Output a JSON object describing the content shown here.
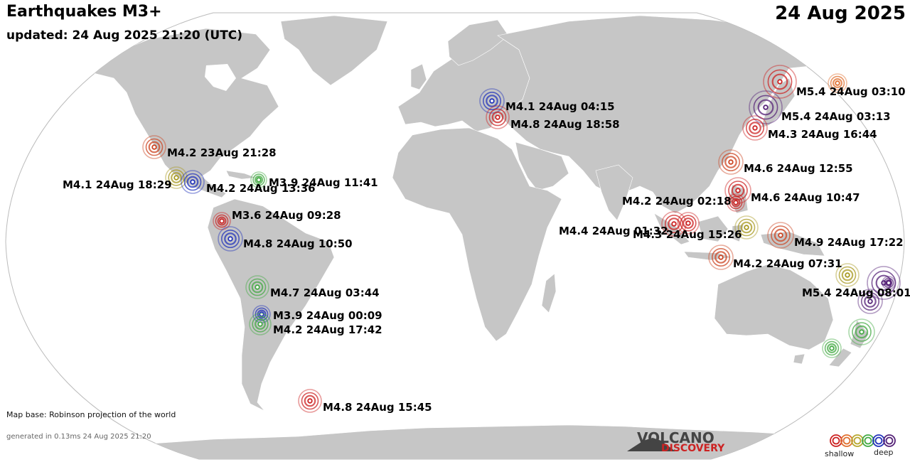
{
  "header": {
    "title": "Earthquakes M3+",
    "updated": "updated: 24 Aug 2025 21:20 (UTC)",
    "date": "24 Aug 2025"
  },
  "footer": {
    "map_base": "Map base: Robinson projection of the world",
    "generated": "generated in 0.13ms 24 Aug 2025 21:20"
  },
  "logo": {
    "line1": "VOLCANO",
    "line2": "DISCOVERY"
  },
  "legend": {
    "shallow": "shallow",
    "deep": "deep",
    "colors": [
      "#cc2222",
      "#e07030",
      "#b8a830",
      "#44aa44",
      "#2233bb",
      "#552277"
    ]
  },
  "colors": {
    "ocean": "#ffffff",
    "land": "#c6c6c6",
    "border": "#ffffff",
    "outline": "#bbbbbb"
  },
  "quakes": [
    {
      "label": "M4.2 23Aug 21:28",
      "color": "#cc4422"
    },
    {
      "label": "M4.1 24Aug 18:29",
      "color": "#a89a22"
    },
    {
      "label": "M4.2 24Aug 13:36",
      "color": "#2233bb"
    },
    {
      "label": "M3.9 24Aug 11:41",
      "color": "#44aa44"
    },
    {
      "label": "M3.6 24Aug 09:28",
      "color": "#cc2222"
    },
    {
      "label": "M4.8 24Aug 10:50",
      "color": "#2233bb"
    },
    {
      "label": "M4.7 24Aug 03:44",
      "color": "#44aa44"
    },
    {
      "label": "M3.9 24Aug 00:09",
      "color": "#2233bb"
    },
    {
      "label": "M4.2 24Aug 17:42",
      "color": "#44aa44"
    },
    {
      "label": "M4.8 24Aug 15:45",
      "color": "#cc2222"
    },
    {
      "label": "M4.1 24Aug 04:15",
      "color": "#2233bb"
    },
    {
      "label": "M4.8 24Aug 18:58",
      "color": "#cc2222"
    },
    {
      "label": "M5.4 24Aug 03:10",
      "color": "#cc2222"
    },
    {
      "label": "M5.4 24Aug 03:13",
      "color": "#552277"
    },
    {
      "label": "M4.3 24Aug 16:44",
      "color": "#cc2222"
    },
    {
      "label": "M4.6 24Aug 12:55",
      "color": "#cc4422"
    },
    {
      "label": "M4.6 24Aug 10:47",
      "color": "#cc2222"
    },
    {
      "label": "M4.2 24Aug 02:18",
      "color": "#cc2222"
    },
    {
      "label": "M4.4 24Aug 01:32",
      "color": "#cc2222"
    },
    {
      "label": "M4.3 24Aug 15:26",
      "color": "#cc2222"
    },
    {
      "label": "M4.9 24Aug 17:22",
      "color": "#cc4422"
    },
    {
      "label": "M4.2 24Aug 07:31",
      "color": "#cc4422"
    },
    {
      "label": "M5.4 24Aug 08:01",
      "color": "#552277"
    },
    {
      "color": "#e07030"
    },
    {
      "color": "#a89a22"
    },
    {
      "color": "#a89a22"
    },
    {
      "color": "#552277"
    },
    {
      "color": "#44aa44"
    },
    {
      "color": "#44aa44"
    },
    {
      "color": "#552277"
    }
  ]
}
